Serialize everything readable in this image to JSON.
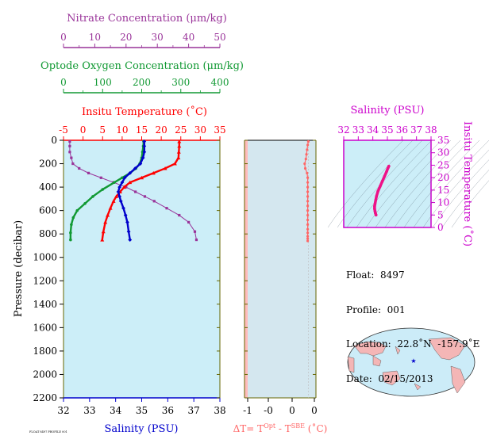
{
  "colors": {
    "nitrate": "#993399",
    "oxygen": "#119933",
    "temperature": "#ff0000",
    "salinity": "#0000cc",
    "delta": "#ff6666",
    "ts_curve": "#ee1188",
    "plot_bg": "#cceef8",
    "magenta_axis": "#cc00cc",
    "olive": "#666600"
  },
  "axes": {
    "nitrate": {
      "label": "Nitrate Concentration (μm/kg)",
      "ticks": [
        "0",
        "10",
        "20",
        "30",
        "40",
        "50"
      ],
      "range": [
        0,
        50
      ]
    },
    "oxygen": {
      "label": "Optode Oxygen Concentration (μm/kg)",
      "ticks": [
        "0",
        "100",
        "200",
        "300",
        "400"
      ],
      "range": [
        0,
        400
      ]
    },
    "temperature": {
      "label": "Insitu Temperature (˚C)",
      "ticks": [
        "-5",
        "0",
        "5",
        "10",
        "15",
        "20",
        "25",
        "30",
        "35"
      ],
      "range": [
        -5,
        35
      ]
    },
    "pressure": {
      "label": "Pressure (decibar)",
      "ticks": [
        "0",
        "200",
        "400",
        "600",
        "800",
        "1000",
        "1200",
        "1400",
        "1600",
        "1800",
        "2000",
        "2200"
      ],
      "range": [
        0,
        2200
      ]
    },
    "salinity": {
      "label": "Salinity (PSU)",
      "ticks": [
        "32",
        "33",
        "34",
        "35",
        "36",
        "37",
        "38"
      ],
      "range": [
        32,
        38
      ]
    },
    "delta": {
      "label_prefix": "ΔT= T",
      "sup1": "Opt",
      "label_mid": " - T",
      "sup2": "SBE",
      "label_suffix": " (˚C)",
      "ticks": [
        "-1",
        "-0",
        "-0",
        "0",
        "0"
      ],
      "range": [
        -1,
        0.1
      ]
    },
    "ts_salinity": {
      "label": "Salinity (PSU)",
      "ticks": [
        "32",
        "33",
        "34",
        "35",
        "36",
        "37",
        "38"
      ],
      "range": [
        32,
        38
      ]
    },
    "ts_temperature": {
      "label": "Insitu Temperature (˚C)",
      "ticks": [
        "0",
        "5",
        "10",
        "15",
        "20",
        "25",
        "30",
        "35"
      ],
      "range": [
        0,
        35
      ]
    }
  },
  "info": {
    "float": "Float:  8497",
    "profile": "Profile:  001",
    "location": "Location:  22.8˚N  -157.9˚E",
    "date": "Date:  02/15/2013"
  },
  "footer_tag": "FLOAT 8497 PROFILE 001",
  "chart_data": [
    {
      "type": "line",
      "title": "",
      "ylabel": "Pressure (decibar)",
      "ylim": [
        2200,
        0
      ],
      "series": [
        {
          "name": "Nitrate Concentration (μm/kg)",
          "axis": "nitrate",
          "x": [
            2,
            2,
            2,
            2.5,
            3,
            5,
            8,
            12,
            16,
            20,
            23,
            26,
            29,
            33,
            37,
            40,
            42,
            42.5
          ],
          "y": [
            10,
            50,
            100,
            150,
            200,
            240,
            280,
            320,
            360,
            400,
            440,
            480,
            520,
            580,
            640,
            700,
            780,
            850
          ]
        },
        {
          "name": "Optode Oxygen Concentration (μm/kg)",
          "axis": "oxygen",
          "x": [
            205,
            204,
            202,
            200,
            195,
            185,
            170,
            150,
            130,
            100,
            75,
            55,
            35,
            25,
            20,
            18,
            18
          ],
          "y": [
            10,
            50,
            100,
            150,
            200,
            240,
            280,
            320,
            360,
            420,
            480,
            540,
            600,
            660,
            720,
            790,
            850
          ]
        },
        {
          "name": "Insitu Temperature (˚C)",
          "axis": "temperature",
          "x": [
            24.6,
            24.6,
            24.5,
            24.4,
            23.5,
            21,
            18,
            15,
            12,
            10.5,
            9.5,
            8.5,
            7.8,
            7,
            6.3,
            5.7,
            5.2,
            4.9
          ],
          "y": [
            10,
            50,
            100,
            150,
            200,
            240,
            280,
            320,
            360,
            400,
            440,
            480,
            520,
            580,
            640,
            700,
            780,
            850
          ]
        },
        {
          "name": "Salinity (PSU)",
          "axis": "salinity",
          "x": [
            35.1,
            35.1,
            35.1,
            35.05,
            34.95,
            34.75,
            34.55,
            34.35,
            34.25,
            34.15,
            34.1,
            34.15,
            34.2,
            34.3,
            34.38,
            34.45,
            34.5,
            34.55
          ],
          "y": [
            10,
            50,
            100,
            150,
            200,
            240,
            280,
            320,
            360,
            400,
            440,
            480,
            520,
            580,
            640,
            700,
            780,
            850
          ]
        }
      ]
    },
    {
      "type": "scatter",
      "title": "",
      "xlabel": "ΔT= T^Opt - T^SBE (˚C)",
      "ylabel": "",
      "xlim": [
        -1,
        0.1
      ],
      "ylim": [
        2200,
        0
      ],
      "series": [
        {
          "name": "",
          "x": [
            0,
            -0.01,
            -0.02,
            -0.03,
            -0.04,
            -0.06,
            -0.05,
            -0.02,
            -0.01,
            -0.01,
            -0.01,
            -0.01,
            -0.01,
            -0.01,
            -0.01,
            -0.01,
            -0.01,
            -0.01,
            -0.01,
            -0.01,
            -0.01,
            -0.01,
            -0.01,
            -0.01
          ],
          "y": [
            10,
            40,
            80,
            120,
            160,
            200,
            240,
            280,
            320,
            360,
            400,
            440,
            480,
            520,
            560,
            600,
            640,
            680,
            720,
            760,
            790,
            820,
            840,
            860
          ]
        }
      ]
    },
    {
      "type": "scatter",
      "title": "",
      "xlabel": "Salinity (PSU)",
      "ylabel": "Insitu Temperature (˚C)",
      "xlim": [
        32,
        38
      ],
      "ylim": [
        0,
        35
      ],
      "series": [
        {
          "name": "",
          "x": [
            35.1,
            35.05,
            34.95,
            34.8,
            34.65,
            34.5,
            34.35,
            34.25,
            34.2,
            34.15,
            34.12,
            34.12,
            34.15,
            34.18,
            34.22
          ],
          "y": [
            24.6,
            24,
            22.5,
            20.5,
            18.5,
            16.5,
            14.5,
            12.5,
            11,
            9.5,
            8.5,
            7.5,
            6.5,
            5.7,
            5
          ]
        }
      ]
    }
  ]
}
